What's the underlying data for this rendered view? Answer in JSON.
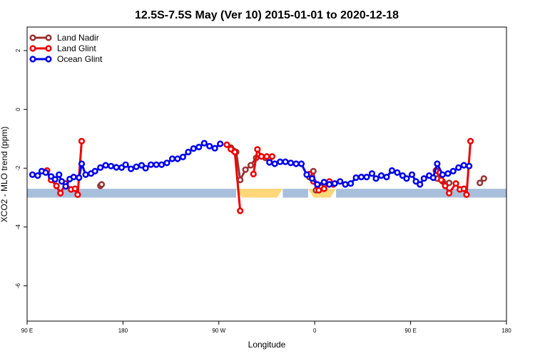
{
  "chart_data": {
    "type": "line",
    "title": "12.5S-7.5S May (Ver 10)   2015-01-01 to 2020-12-18",
    "xlabel": "Longitude",
    "ylabel": "XCO2 - MLO trend (ppm)",
    "xlim": [
      90,
      450
    ],
    "ylim": [
      -7.2,
      2.8
    ],
    "x_ticks": [
      90,
      162,
      234,
      306,
      378,
      450
    ],
    "x_tick_labels": [
      "90 E",
      "180",
      "90 W",
      "0",
      "90 E",
      "180"
    ],
    "y_ticks": [
      -6,
      -4,
      -2,
      0,
      2
    ],
    "y_tick_labels": [
      "-6",
      "-4",
      "-2",
      "0",
      "2"
    ],
    "legend_position": "top-left",
    "grid": false,
    "colors": {
      "land_nadir": "#993333",
      "land_glint": "#ee0000",
      "ocean_glint": "#0000ee",
      "ocean_band": "#a8bfdc",
      "land_band": "#ffd779"
    },
    "surface_band": {
      "y_range": [
        -3.0,
        -2.7
      ],
      "segments": [
        {
          "type": "ocean",
          "x": [
            90,
            247
          ]
        },
        {
          "type": "land",
          "x": [
            247,
            282
          ]
        },
        {
          "type": "ocean",
          "x": [
            282,
            301
          ]
        },
        {
          "type": "land",
          "x": [
            301,
            322
          ]
        },
        {
          "type": "ocean",
          "x": [
            322,
            450
          ]
        }
      ]
    },
    "series": [
      {
        "name": "Land Nadir",
        "color": "#993333",
        "segments": [
          [
            [
              145,
              -2.6
            ],
            [
              146,
              -2.55
            ]
          ],
          [
            [
              243,
              -1.3
            ],
            [
              245,
              -1.4
            ],
            [
              247,
              -1.45
            ],
            [
              250,
              -2.4
            ],
            [
              254,
              -2.05
            ],
            [
              258,
              -1.9
            ],
            [
              262,
              -1.65
            ],
            [
              266,
              -1.6
            ],
            [
              269,
              -1.65
            ],
            [
              272,
              -1.7
            ]
          ],
          [
            [
              302,
              -2.3
            ],
            [
              305,
              -2.1
            ],
            [
              307,
              -2.75
            ],
            [
              311,
              -2.65
            ],
            [
              314,
              -2.55
            ]
          ],
          [
            [
              398,
              -2.35
            ],
            [
              402,
              -2.45
            ],
            [
              407,
              -2.5
            ]
          ],
          [
            [
              430,
              -2.5
            ],
            [
              433,
              -2.35
            ]
          ]
        ]
      },
      {
        "name": "Land Glint",
        "color": "#ee0000",
        "segments": [
          [
            [
              105,
              -2.08
            ],
            [
              108,
              -2.4
            ],
            [
              112,
              -2.6
            ],
            [
              115,
              -2.85
            ],
            [
              119,
              -2.52
            ],
            [
              123,
              -2.72
            ],
            [
              126,
              -2.7
            ],
            [
              128,
              -2.9
            ],
            [
              131,
              -1.08
            ]
          ],
          [
            [
              240,
              -1.2
            ],
            [
              243,
              -1.35
            ],
            [
              246,
              -1.45
            ],
            [
              250,
              -3.45
            ]
          ],
          [
            [
              260,
              -2.2
            ],
            [
              263,
              -1.36
            ],
            [
              266,
              -1.6
            ],
            [
              270,
              -1.6
            ],
            [
              274,
              -1.6
            ]
          ],
          [
            [
              302,
              -2.2
            ],
            [
              305,
              -2.45
            ],
            [
              309,
              -2.75
            ],
            [
              313,
              -2.7
            ],
            [
              317,
              -2.45
            ],
            [
              320,
              -2.55
            ]
          ],
          [
            [
              397,
              -2.08
            ],
            [
              401,
              -2.4
            ],
            [
              404,
              -2.6
            ],
            [
              407,
              -2.85
            ],
            [
              412,
              -2.52
            ],
            [
              415,
              -2.72
            ],
            [
              418,
              -2.7
            ],
            [
              420,
              -2.9
            ],
            [
              423,
              -1.08
            ]
          ]
        ]
      },
      {
        "name": "Ocean Glint",
        "color": "#0000ee",
        "segments": [
          [
            [
              94,
              -2.22
            ],
            [
              98,
              -2.25
            ],
            [
              101,
              -2.1
            ],
            [
              104,
              -2.15
            ],
            [
              108,
              -2.28
            ],
            [
              111,
              -2.38
            ],
            [
              114,
              -2.22
            ],
            [
              116,
              -2.45
            ],
            [
              119,
              -2.62
            ],
            [
              122,
              -2.37
            ],
            [
              125,
              -2.3
            ],
            [
              129,
              -2.32
            ],
            [
              131,
              -1.85
            ],
            [
              134,
              -2.22
            ],
            [
              138,
              -2.18
            ],
            [
              141,
              -2.1
            ],
            [
              145,
              -1.98
            ],
            [
              149,
              -1.9
            ],
            [
              153,
              -1.93
            ],
            [
              157,
              -1.97
            ],
            [
              161,
              -1.98
            ],
            [
              164,
              -1.88
            ],
            [
              168,
              -2.02
            ],
            [
              172,
              -1.95
            ],
            [
              176,
              -1.9
            ],
            [
              179,
              -2.0
            ],
            [
              183,
              -1.88
            ],
            [
              187,
              -1.88
            ],
            [
              191,
              -1.88
            ],
            [
              195,
              -1.82
            ],
            [
              199,
              -1.68
            ],
            [
              203,
              -1.68
            ],
            [
              207,
              -1.62
            ],
            [
              211,
              -1.45
            ],
            [
              215,
              -1.33
            ],
            [
              219,
              -1.28
            ],
            [
              223,
              -1.15
            ],
            [
              227,
              -1.25
            ],
            [
              231,
              -1.32
            ],
            [
              235,
              -1.17
            ]
          ],
          [
            [
              272,
              -1.8
            ],
            [
              276,
              -1.85
            ],
            [
              280,
              -1.78
            ],
            [
              284,
              -1.78
            ],
            [
              288,
              -1.82
            ],
            [
              292,
              -1.85
            ],
            [
              296,
              -1.85
            ],
            [
              300,
              -2.22
            ],
            [
              304,
              -2.35
            ],
            [
              308,
              -2.55
            ],
            [
              313,
              -2.47
            ],
            [
              317,
              -2.55
            ],
            [
              321,
              -2.52
            ],
            [
              325,
              -2.45
            ],
            [
              329,
              -2.55
            ],
            [
              333,
              -2.52
            ],
            [
              337,
              -2.32
            ],
            [
              341,
              -2.3
            ],
            [
              345,
              -2.3
            ],
            [
              349,
              -2.18
            ],
            [
              352,
              -2.35
            ],
            [
              356,
              -2.25
            ],
            [
              360,
              -2.3
            ],
            [
              364,
              -2.08
            ],
            [
              368,
              -2.15
            ],
            [
              372,
              -2.25
            ],
            [
              375,
              -2.35
            ],
            [
              379,
              -2.22
            ],
            [
              382,
              -2.45
            ],
            [
              385,
              -2.55
            ],
            [
              388,
              -2.35
            ],
            [
              392,
              -2.25
            ],
            [
              395,
              -2.32
            ],
            [
              398,
              -1.85
            ],
            [
              402,
              -2.22
            ],
            [
              406,
              -2.18
            ],
            [
              410,
              -2.1
            ],
            [
              414,
              -1.98
            ],
            [
              418,
              -1.9
            ],
            [
              422,
              -1.93
            ]
          ]
        ]
      }
    ]
  }
}
